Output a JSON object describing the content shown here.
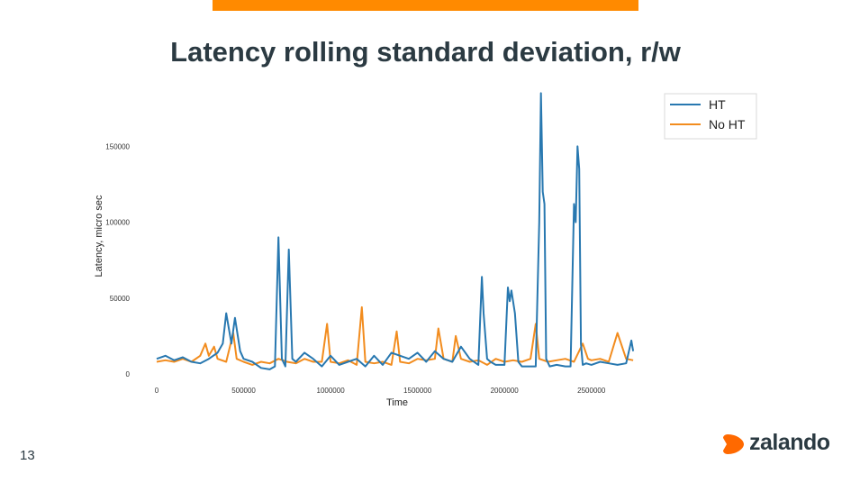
{
  "slide": {
    "title": "Latency rolling standard deviation, r/w",
    "page_number": "13",
    "brand": "zalando",
    "accent_color": "#ff8a00",
    "text_color": "#2b3a42"
  },
  "chart_data": {
    "type": "line",
    "title": "",
    "xlabel": "Time",
    "ylabel": "Latency, micro sec",
    "xlim": [
      0,
      2750000
    ],
    "ylim": [
      0,
      190000
    ],
    "x_ticks": [
      0,
      500000,
      1000000,
      1500000,
      2000000,
      2500000
    ],
    "x_tick_labels": [
      "0",
      "500000",
      "1000000",
      "1500000",
      "2000000",
      "2500000"
    ],
    "y_ticks": [
      0,
      50000,
      100000,
      150000
    ],
    "y_tick_labels": [
      "0",
      "50000",
      "100000",
      "150000"
    ],
    "grid": false,
    "legend": "top-right",
    "series": [
      {
        "name": "HT",
        "color": "#2878b0",
        "x": [
          0,
          50000,
          100000,
          150000,
          200000,
          250000,
          300000,
          350000,
          380000,
          400000,
          430000,
          450000,
          480000,
          500000,
          550000,
          600000,
          650000,
          680000,
          700000,
          720000,
          740000,
          760000,
          780000,
          800000,
          850000,
          900000,
          950000,
          1000000,
          1050000,
          1100000,
          1150000,
          1200000,
          1250000,
          1300000,
          1350000,
          1400000,
          1450000,
          1500000,
          1550000,
          1600000,
          1650000,
          1700000,
          1750000,
          1800000,
          1850000,
          1870000,
          1880000,
          1900000,
          1920000,
          1950000,
          2000000,
          2020000,
          2030000,
          2040000,
          2060000,
          2080000,
          2100000,
          2150000,
          2180000,
          2200000,
          2210000,
          2220000,
          2230000,
          2240000,
          2260000,
          2300000,
          2350000,
          2380000,
          2400000,
          2410000,
          2420000,
          2430000,
          2440000,
          2450000,
          2470000,
          2500000,
          2550000,
          2600000,
          2650000,
          2700000,
          2730000,
          2740000
        ],
        "y": [
          10000,
          12000,
          9000,
          11000,
          8000,
          7000,
          10000,
          14000,
          20000,
          40000,
          20000,
          37000,
          15000,
          10000,
          8000,
          4000,
          3000,
          5000,
          90000,
          10000,
          5000,
          82000,
          10000,
          8000,
          14000,
          10000,
          5000,
          12000,
          6000,
          8000,
          10000,
          5000,
          12000,
          6000,
          14000,
          12000,
          10000,
          14000,
          8000,
          15000,
          10000,
          8000,
          18000,
          10000,
          6000,
          64000,
          40000,
          10000,
          8000,
          6000,
          6000,
          57000,
          48000,
          55000,
          40000,
          8000,
          5000,
          5000,
          5000,
          100000,
          185000,
          120000,
          112000,
          10000,
          5000,
          6000,
          5000,
          5000,
          112000,
          100000,
          150000,
          135000,
          20000,
          6000,
          7000,
          6000,
          8000,
          7000,
          6000,
          7000,
          22000,
          15000
        ]
      },
      {
        "name": "No HT",
        "color": "#f28c1e",
        "x": [
          0,
          50000,
          100000,
          150000,
          200000,
          250000,
          280000,
          300000,
          330000,
          350000,
          400000,
          440000,
          460000,
          500000,
          550000,
          600000,
          650000,
          700000,
          750000,
          800000,
          850000,
          900000,
          950000,
          980000,
          1000000,
          1050000,
          1100000,
          1150000,
          1180000,
          1200000,
          1250000,
          1300000,
          1350000,
          1380000,
          1400000,
          1450000,
          1500000,
          1550000,
          1600000,
          1620000,
          1650000,
          1700000,
          1720000,
          1750000,
          1800000,
          1850000,
          1900000,
          1950000,
          2000000,
          2050000,
          2100000,
          2150000,
          2180000,
          2200000,
          2250000,
          2300000,
          2350000,
          2400000,
          2450000,
          2480000,
          2500000,
          2550000,
          2600000,
          2650000,
          2700000,
          2740000
        ],
        "y": [
          8000,
          9000,
          8000,
          10000,
          8000,
          12000,
          20000,
          12000,
          18000,
          10000,
          8000,
          27000,
          10000,
          8000,
          6000,
          8000,
          7000,
          10000,
          8000,
          7000,
          10000,
          8000,
          8000,
          33000,
          8000,
          7000,
          9000,
          6000,
          44000,
          8000,
          7000,
          8000,
          6000,
          28000,
          8000,
          7000,
          10000,
          9000,
          10000,
          30000,
          10000,
          8000,
          25000,
          10000,
          8000,
          9000,
          6000,
          10000,
          8000,
          9000,
          8000,
          10000,
          33000,
          10000,
          8000,
          9000,
          10000,
          8000,
          20000,
          10000,
          9000,
          10000,
          8000,
          27000,
          10000,
          9000
        ]
      }
    ]
  }
}
